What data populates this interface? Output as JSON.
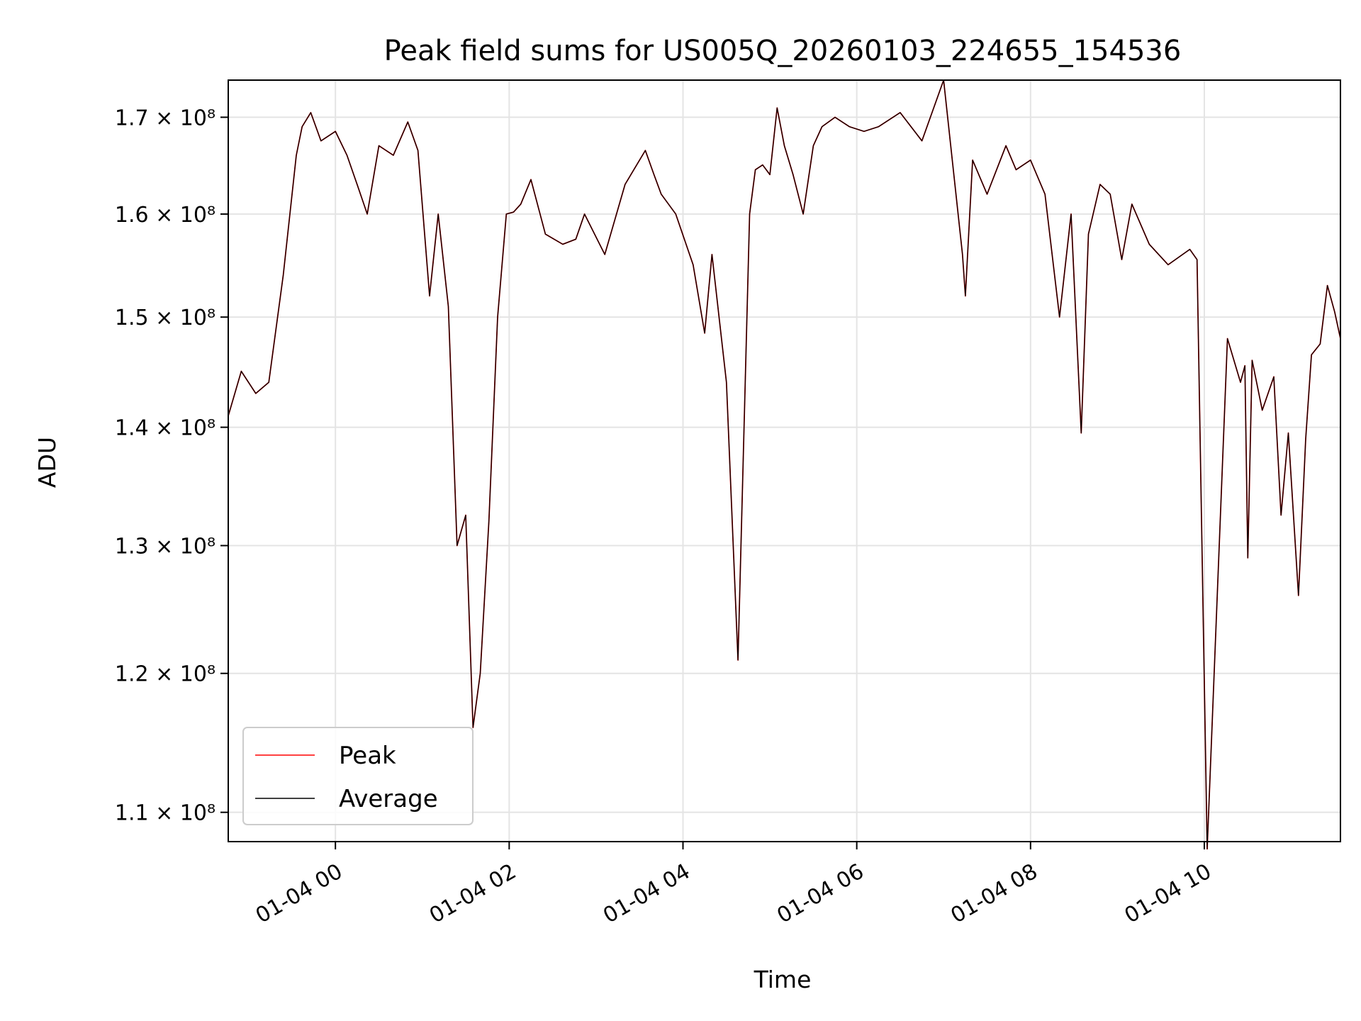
{
  "chart_data": {
    "type": "line",
    "title": "Peak field sums for US005Q_20260103_224655_154536",
    "xlabel": "Time",
    "ylabel": "ADU",
    "log_y": true,
    "grid": true,
    "legend_position": "lower-left",
    "xlim": [
      "2026-01-03 22:46",
      "2026-01-04 11:34"
    ],
    "ylim": [
      108000000,
      174000000
    ],
    "x_ticks": [
      {
        "value": "2026-01-04 00:00",
        "label": "01-04 00"
      },
      {
        "value": "2026-01-04 02:00",
        "label": "01-04 02"
      },
      {
        "value": "2026-01-04 04:00",
        "label": "01-04 04"
      },
      {
        "value": "2026-01-04 06:00",
        "label": "01-04 06"
      },
      {
        "value": "2026-01-04 08:00",
        "label": "01-04 08"
      },
      {
        "value": "2026-01-04 10:00",
        "label": "01-04 10"
      }
    ],
    "y_ticks": [
      {
        "value": 110000000,
        "label": "1.1 × 10⁸"
      },
      {
        "value": 120000000,
        "label": "1.2 × 10⁸"
      },
      {
        "value": 130000000,
        "label": "1.3 × 10⁸"
      },
      {
        "value": 140000000,
        "label": "1.4 × 10⁸"
      },
      {
        "value": 150000000,
        "label": "1.5 × 10⁸"
      },
      {
        "value": 160000000,
        "label": "1.6 × 10⁸"
      },
      {
        "value": 170000000,
        "label": "1.7 × 10⁸"
      }
    ],
    "x": [
      "2026-01-03 22:46",
      "2026-01-03 22:55",
      "2026-01-03 23:05",
      "2026-01-03 23:14",
      "2026-01-03 23:24",
      "2026-01-03 23:33",
      "2026-01-03 23:37",
      "2026-01-03 23:43",
      "2026-01-03 23:50",
      "2026-01-04 00:00",
      "2026-01-04 00:08",
      "2026-01-04 00:15",
      "2026-01-04 00:22",
      "2026-01-04 00:30",
      "2026-01-04 00:40",
      "2026-01-04 00:50",
      "2026-01-04 00:57",
      "2026-01-04 01:05",
      "2026-01-04 01:11",
      "2026-01-04 01:18",
      "2026-01-04 01:24",
      "2026-01-04 01:30",
      "2026-01-04 01:35",
      "2026-01-04 01:40",
      "2026-01-04 01:46",
      "2026-01-04 01:52",
      "2026-01-04 01:58",
      "2026-01-04 02:03",
      "2026-01-04 02:08",
      "2026-01-04 02:15",
      "2026-01-04 02:25",
      "2026-01-04 02:37",
      "2026-01-04 02:46",
      "2026-01-04 02:52",
      "2026-01-04 03:06",
      "2026-01-04 03:20",
      "2026-01-04 03:34",
      "2026-01-04 03:40",
      "2026-01-04 03:45",
      "2026-01-04 03:55",
      "2026-01-04 04:07",
      "2026-01-04 04:15",
      "2026-01-04 04:20",
      "2026-01-04 04:30",
      "2026-01-04 04:38",
      "2026-01-04 04:46",
      "2026-01-04 04:50",
      "2026-01-04 04:55",
      "2026-01-04 05:00",
      "2026-01-04 05:05",
      "2026-01-04 05:10",
      "2026-01-04 05:16",
      "2026-01-04 05:23",
      "2026-01-04 05:30",
      "2026-01-04 05:36",
      "2026-01-04 05:45",
      "2026-01-04 05:55",
      "2026-01-04 06:05",
      "2026-01-04 06:15",
      "2026-01-04 06:30",
      "2026-01-04 06:45",
      "2026-01-04 07:00",
      "2026-01-04 07:13",
      "2026-01-04 07:15",
      "2026-01-04 07:20",
      "2026-01-04 07:30",
      "2026-01-04 07:43",
      "2026-01-04 07:50",
      "2026-01-04 08:00",
      "2026-01-04 08:10",
      "2026-01-04 08:20",
      "2026-01-04 08:28",
      "2026-01-04 08:35",
      "2026-01-04 08:40",
      "2026-01-04 08:48",
      "2026-01-04 08:55",
      "2026-01-04 09:03",
      "2026-01-04 09:10",
      "2026-01-04 09:22",
      "2026-01-04 09:35",
      "2026-01-04 09:50",
      "2026-01-04 09:55",
      "2026-01-04 10:02",
      "2026-01-04 10:16",
      "2026-01-04 10:25",
      "2026-01-04 10:28",
      "2026-01-04 10:30",
      "2026-01-04 10:33",
      "2026-01-04 10:40",
      "2026-01-04 10:48",
      "2026-01-04 10:53",
      "2026-01-04 10:58",
      "2026-01-04 11:05",
      "2026-01-04 11:10",
      "2026-01-04 11:14",
      "2026-01-04 11:20",
      "2026-01-04 11:25",
      "2026-01-04 11:30",
      "2026-01-04 11:34"
    ],
    "series": [
      {
        "name": "Peak",
        "color": "#ff0000",
        "values": [
          141000000,
          145000000,
          143000000,
          144000000,
          154000000,
          166000000,
          169000000,
          170500000,
          167500000,
          168500000,
          166000000,
          163000000,
          160000000,
          167000000,
          166000000,
          169500000,
          166500000,
          152000000,
          160000000,
          151000000,
          130000000,
          132500000,
          116000000,
          120000000,
          132000000,
          150000000,
          160000000,
          160200000,
          161000000,
          163500000,
          158000000,
          157000000,
          157500000,
          160000000,
          156000000,
          163000000,
          166500000,
          164000000,
          162000000,
          160000000,
          155000000,
          148500000,
          156000000,
          144000000,
          121000000,
          160000000,
          164500000,
          165000000,
          164000000,
          171000000,
          167000000,
          164000000,
          160000000,
          167000000,
          169000000,
          170000000,
          169000000,
          168500000,
          169000000,
          170500000,
          167500000,
          174000000,
          156000000,
          152000000,
          165500000,
          162000000,
          167000000,
          164500000,
          165500000,
          162000000,
          150000000,
          160000000,
          139500000,
          158000000,
          163000000,
          162000000,
          155500000,
          161000000,
          157000000,
          155000000,
          156500000,
          155500000,
          107500000,
          148000000,
          144000000,
          145500000,
          129000000,
          146000000,
          141500000,
          144500000,
          132500000,
          139500000,
          126000000,
          139000000,
          146500000,
          147500000,
          153000000,
          150500000,
          148000000
        ]
      },
      {
        "name": "Average",
        "color": "#000000",
        "values": [
          141000000,
          145000000,
          143000000,
          144000000,
          154000000,
          166000000,
          169000000,
          170500000,
          167500000,
          168500000,
          166000000,
          163000000,
          160000000,
          167000000,
          166000000,
          169500000,
          166500000,
          152000000,
          160000000,
          151000000,
          130000000,
          132500000,
          116000000,
          120000000,
          132000000,
          150000000,
          160000000,
          160200000,
          161000000,
          163500000,
          158000000,
          157000000,
          157500000,
          160000000,
          156000000,
          163000000,
          166500000,
          164000000,
          162000000,
          160000000,
          155000000,
          148500000,
          156000000,
          144000000,
          121000000,
          160000000,
          164500000,
          165000000,
          164000000,
          171000000,
          167000000,
          164000000,
          160000000,
          167000000,
          169000000,
          170000000,
          169000000,
          168500000,
          169000000,
          170500000,
          167500000,
          174000000,
          156000000,
          152000000,
          165500000,
          162000000,
          167000000,
          164500000,
          165500000,
          162000000,
          150000000,
          160000000,
          139500000,
          158000000,
          163000000,
          162000000,
          155500000,
          161000000,
          157000000,
          155000000,
          156500000,
          155500000,
          107500000,
          148000000,
          144000000,
          145500000,
          129000000,
          146000000,
          141500000,
          144500000,
          132500000,
          139500000,
          126000000,
          139000000,
          146500000,
          147500000,
          153000000,
          150500000,
          148000000
        ]
      }
    ]
  }
}
